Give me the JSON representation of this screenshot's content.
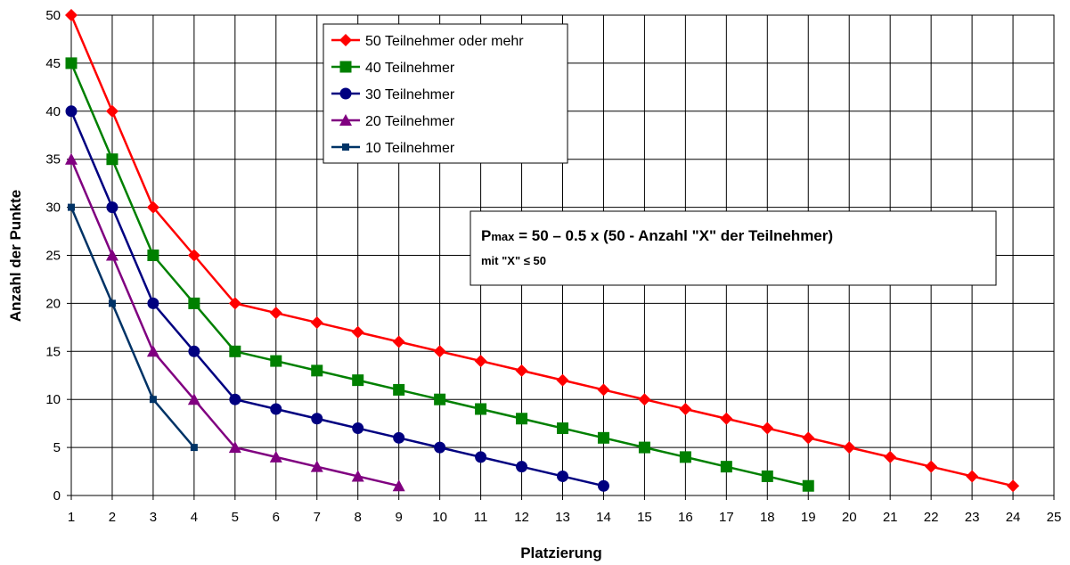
{
  "chart_data": {
    "type": "line",
    "xlabel": "Platzierung",
    "ylabel": "Anzahl der Punkte",
    "xlim": [
      1,
      25
    ],
    "ylim": [
      0,
      50
    ],
    "x_ticks": [
      "1",
      "2",
      "3",
      "4",
      "5",
      "6",
      "7",
      "8",
      "9",
      "10",
      "11",
      "12",
      "13",
      "14",
      "15",
      "16",
      "17",
      "18",
      "19",
      "20",
      "21",
      "22",
      "23",
      "24",
      "25"
    ],
    "y_ticks": [
      "0",
      "5",
      "10",
      "15",
      "20",
      "25",
      "30",
      "35",
      "40",
      "45",
      "50"
    ],
    "grid": true,
    "legend_position": "top-center",
    "series": [
      {
        "name": "50 Teilnehmer oder mehr",
        "color": "#ff0000",
        "marker": "diamond",
        "x": [
          1,
          2,
          3,
          4,
          5,
          6,
          7,
          8,
          9,
          10,
          11,
          12,
          13,
          14,
          15,
          16,
          17,
          18,
          19,
          20,
          21,
          22,
          23,
          24
        ],
        "y": [
          50,
          40,
          30,
          25,
          20,
          19,
          18,
          17,
          16,
          15,
          14,
          13,
          12,
          11,
          10,
          9,
          8,
          7,
          6,
          5,
          4,
          3,
          2,
          1
        ]
      },
      {
        "name": "40 Teilnehmer",
        "color": "#008000",
        "marker": "square",
        "x": [
          1,
          2,
          3,
          4,
          5,
          6,
          7,
          8,
          9,
          10,
          11,
          12,
          13,
          14,
          15,
          16,
          17,
          18,
          19
        ],
        "y": [
          45,
          35,
          25,
          20,
          15,
          14,
          13,
          12,
          11,
          10,
          9,
          8,
          7,
          6,
          5,
          4,
          3,
          2,
          1
        ]
      },
      {
        "name": "30 Teilnehmer",
        "color": "#000080",
        "marker": "circle",
        "x": [
          1,
          2,
          3,
          4,
          5,
          6,
          7,
          8,
          9,
          10,
          11,
          12,
          13,
          14
        ],
        "y": [
          40,
          30,
          20,
          15,
          10,
          9,
          8,
          7,
          6,
          5,
          4,
          3,
          2,
          1
        ]
      },
      {
        "name": "20 Teilnehmer",
        "color": "#800080",
        "marker": "triangle",
        "x": [
          1,
          2,
          3,
          4,
          5,
          6,
          7,
          8,
          9
        ],
        "y": [
          35,
          25,
          15,
          10,
          5,
          4,
          3,
          2,
          1
        ]
      },
      {
        "name": "10 Teilnehmer",
        "color": "#003366",
        "marker": "small-square",
        "x": [
          1,
          2,
          3,
          4
        ],
        "y": [
          30,
          20,
          10,
          5
        ]
      }
    ],
    "annotation": {
      "line1_main": "P",
      "line1_sub": "max",
      "line1_rest": " = 50 – 0.5 x (50 - Anzahl \"X\" der Teilnehmer)",
      "line2": "mit \"X\" ≤ 50"
    }
  }
}
